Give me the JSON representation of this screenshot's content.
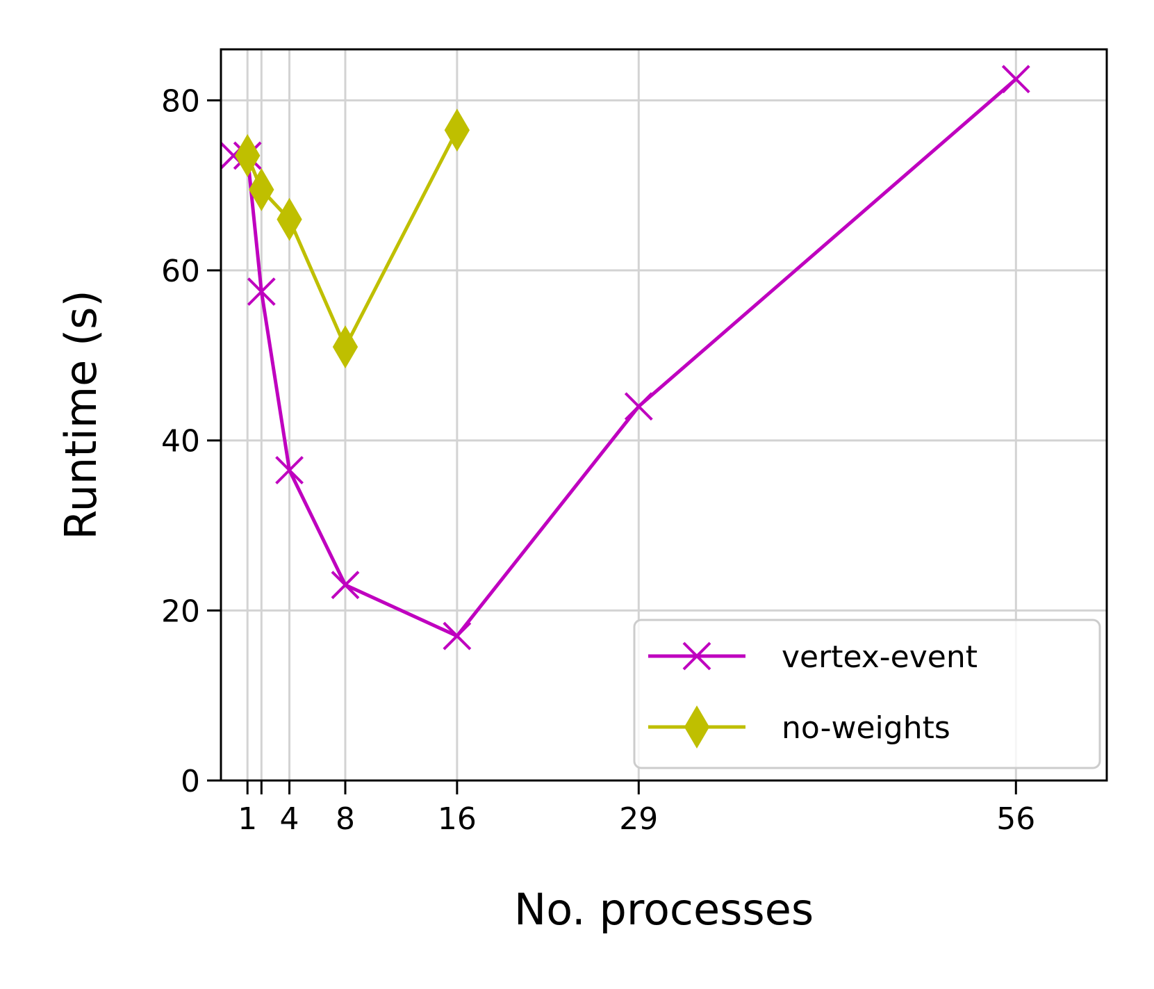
{
  "chart_data": {
    "type": "line",
    "title": "",
    "xlabel": "No. processes",
    "ylabel": "Runtime (s)",
    "xlim": [
      -0.9,
      62.5
    ],
    "ylim": [
      0,
      86
    ],
    "xticks": [
      1,
      2,
      4,
      8,
      16,
      29,
      56
    ],
    "xtick_labels": [
      "1",
      "",
      "4",
      "8",
      "16",
      "29",
      "56"
    ],
    "yticks": [
      0,
      20,
      40,
      60,
      80
    ],
    "ytick_labels": [
      "0",
      "20",
      "40",
      "60",
      "80"
    ],
    "grid": true,
    "legend_position": "lower-right",
    "series": [
      {
        "name": "vertex-event",
        "color": "#bf00bf",
        "marker": "x",
        "x": [
          0,
          1,
          2,
          4,
          8,
          16,
          29,
          56
        ],
        "y": [
          73.5,
          73.5,
          57.5,
          36.5,
          23.0,
          17.0,
          44.0,
          82.5
        ]
      },
      {
        "name": "no-weights",
        "color": "#bfbf00",
        "marker": "diamond",
        "x": [
          1,
          2,
          4,
          8,
          16
        ],
        "y": [
          73.5,
          69.5,
          66.0,
          51.0,
          76.5
        ]
      }
    ]
  }
}
